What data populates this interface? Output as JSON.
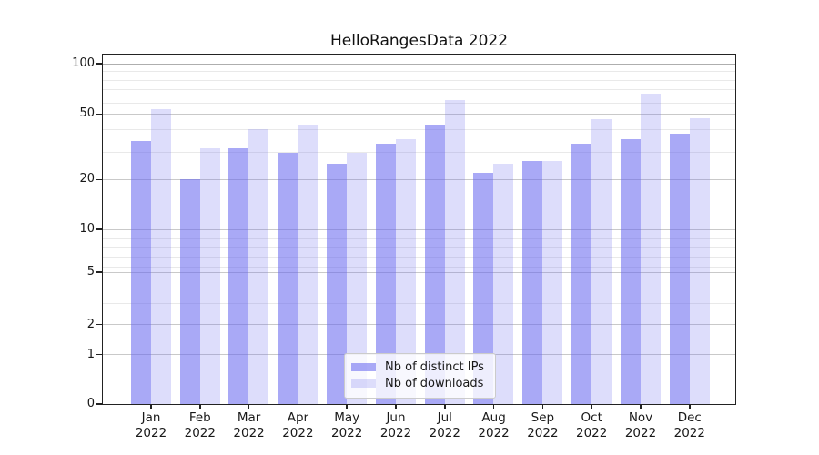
{
  "title": "HelloRangesData 2022",
  "chart_data": {
    "type": "bar",
    "title": "HelloRangesData 2022",
    "categories": [
      "Jan 2022",
      "Feb 2022",
      "Mar 2022",
      "Apr 2022",
      "May 2022",
      "Jun 2022",
      "Jul 2022",
      "Aug 2022",
      "Sep 2022",
      "Oct 2022",
      "Nov 2022",
      "Dec 2022"
    ],
    "x_tick_line1": [
      "Jan",
      "Feb",
      "Mar",
      "Apr",
      "May",
      "Jun",
      "Jul",
      "Aug",
      "Sep",
      "Oct",
      "Nov",
      "Dec"
    ],
    "x_tick_line2": "2022",
    "series": [
      {
        "name": "Nb of distinct IPs",
        "color": "rgba(98,98,238,0.55)",
        "values": [
          34,
          20,
          31,
          29,
          25,
          33,
          43,
          22,
          26,
          33,
          35,
          38
        ]
      },
      {
        "name": "Nb of downloads",
        "color": "rgba(98,98,238,0.22)",
        "values": [
          53,
          31,
          40,
          43,
          29,
          35,
          60,
          25,
          26,
          46,
          66,
          47
        ]
      }
    ],
    "yscale": "log-like (compressed linear below 5)",
    "ylim": [
      0,
      115
    ],
    "y_major_ticks": [
      100,
      50,
      20,
      10,
      5,
      2,
      1,
      0
    ],
    "y_minor_ticks": [
      90,
      80,
      70,
      60,
      40,
      30,
      9,
      8,
      7,
      6,
      4,
      3
    ],
    "grid": "horizontal major + minor",
    "legend_position": "lower center",
    "xlabel": "",
    "ylabel": ""
  },
  "legend": {
    "items": [
      {
        "label": "Nb of distinct IPs",
        "swatch": "rgba(98,98,238,0.55)"
      },
      {
        "label": "Nb of downloads",
        "swatch": "rgba(98,98,238,0.22)"
      }
    ]
  },
  "colors": {
    "bar_base": "#6262ee",
    "grid_major": "#c9c9c9",
    "grid_minor": "#e9e9e9",
    "grid_hundred": "#aeaeae",
    "spine": "#222222",
    "text": "#191919"
  }
}
